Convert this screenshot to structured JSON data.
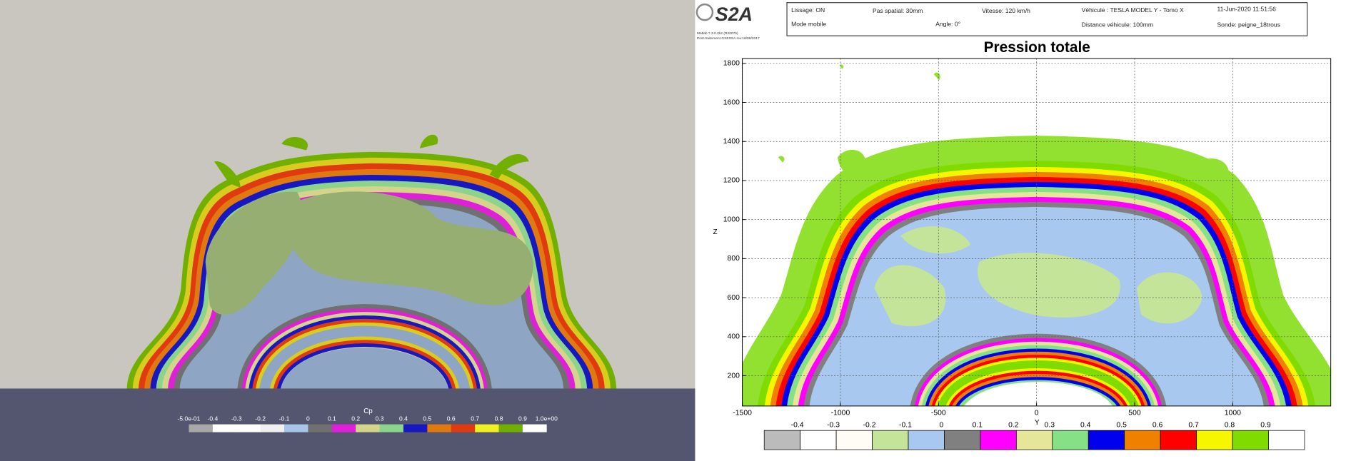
{
  "left_view": {
    "colorbar_title": "Cp",
    "colorbar_labels": [
      "-5.0e-01",
      "-0.4",
      "-0.3",
      "-0.2",
      "-0.1",
      "0",
      "0.1",
      "0.2",
      "0.3",
      "0.4",
      "0.5",
      "0.6",
      "0.7",
      "0.8",
      "0.9",
      "1.0e+00"
    ]
  },
  "right_view": {
    "header": {
      "logo": "S2A",
      "software": "Matlab 7.3.0.2k2 (R2007b)",
      "postprocessing": "Post-traitement GXESSA rev.18/09/2017",
      "smoothing": "Lissage: ON",
      "spatial_step": "Pas spatial: 30mm",
      "speed": "Vitesse: 120 km/h",
      "vehicle": "Véhicule : TESLA MODEL Y - Tomo X",
      "date": "11-Jun-2020 11:51:56",
      "mode": "Mode mobile",
      "angle": "Angle: 0°",
      "distance": "Distance véhicule: 100mm",
      "probe": "Sonde: peigne_18trous"
    },
    "plot": {
      "title": "Pression totale",
      "x_label": "Y",
      "y_label": "Z",
      "xlim": [
        -1500,
        1500
      ],
      "ylim": [
        45,
        1825
      ],
      "xticks": [
        -1500,
        -1000,
        -500,
        0,
        500,
        1000
      ],
      "yticks": [
        200,
        400,
        600,
        800,
        1000,
        1200,
        1400,
        1600,
        1800
      ],
      "grid": true
    },
    "colorbar_labels": [
      "-0.4",
      "-0.3",
      "-0.2",
      "-0.1",
      "0",
      "0.1",
      "0.2",
      "0.3",
      "0.4",
      "0.5",
      "0.6",
      "0.7",
      "0.8",
      "0.9"
    ]
  }
}
